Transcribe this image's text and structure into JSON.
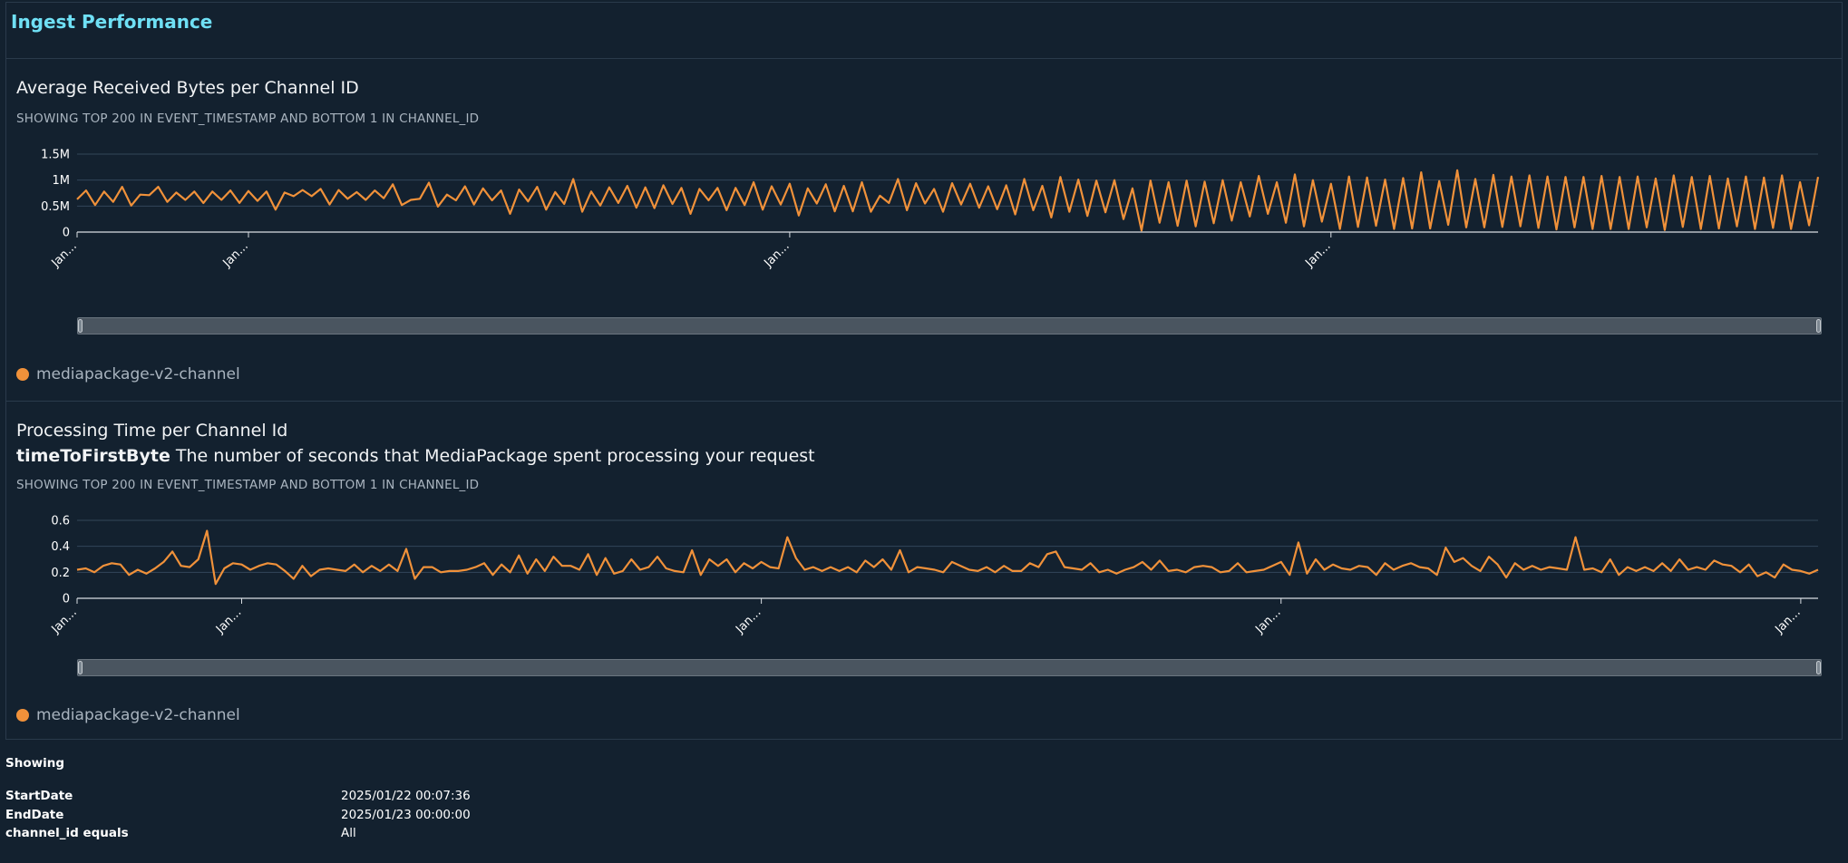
{
  "sheet": {
    "title": "Ingest Performance"
  },
  "visuals": [
    {
      "title": "Average Received Bytes per Channel ID",
      "description_bold": "",
      "description_text": "",
      "subtitle": "SHOWING TOP 200 IN EVENT_TIMESTAMP AND BOTTOM 1 IN CHANNEL_ID",
      "legend": "mediapackage-v2-channel"
    },
    {
      "title": "Processing Time per Channel Id",
      "description_bold": "timeToFirstByte",
      "description_text": "The number of seconds that MediaPackage spent processing your request",
      "subtitle": "SHOWING TOP 200 IN EVENT_TIMESTAMP AND BOTTOM 1 IN CHANNEL_ID",
      "legend": "mediapackage-v2-channel"
    }
  ],
  "footer": {
    "heading": "Showing",
    "rows": [
      {
        "key": "StartDate",
        "value": "2025/01/22 00:07:36"
      },
      {
        "key": "EndDate",
        "value": "2025/01/23 00:00:00"
      },
      {
        "key": "channel_id equals",
        "value": "All"
      }
    ]
  },
  "colors": {
    "series": "#f0913a",
    "background": "#13212f",
    "title_accent": "#6fe0f5"
  },
  "chart_data": [
    {
      "type": "line",
      "title": "Average Received Bytes per Channel ID",
      "ylim": [
        0,
        1500000
      ],
      "y_ticks": [
        0,
        500000,
        1000000,
        1500000
      ],
      "y_tick_labels": [
        "0",
        "0.5M",
        "1M",
        "1.5M"
      ],
      "x_tick_labels": [
        "Jan...",
        "Jan...",
        "Jan...",
        "Jan...",
        "Jan..."
      ],
      "x_tick_index": [
        0,
        19,
        79,
        139,
        199
      ],
      "grid": true,
      "legend_position": "bottom-left",
      "series": [
        {
          "name": "mediapackage-v2-channel",
          "values": [
            630000,
            800000,
            520000,
            780000,
            580000,
            870000,
            510000,
            720000,
            710000,
            870000,
            580000,
            760000,
            620000,
            780000,
            560000,
            780000,
            620000,
            800000,
            560000,
            790000,
            600000,
            780000,
            430000,
            760000,
            690000,
            810000,
            690000,
            830000,
            530000,
            810000,
            640000,
            770000,
            620000,
            800000,
            650000,
            920000,
            520000,
            620000,
            640000,
            950000,
            490000,
            720000,
            610000,
            880000,
            530000,
            840000,
            610000,
            800000,
            350000,
            820000,
            590000,
            870000,
            430000,
            770000,
            540000,
            1020000,
            390000,
            780000,
            510000,
            860000,
            560000,
            890000,
            470000,
            860000,
            460000,
            900000,
            540000,
            850000,
            350000,
            830000,
            610000,
            850000,
            420000,
            850000,
            520000,
            960000,
            430000,
            880000,
            530000,
            930000,
            320000,
            840000,
            550000,
            920000,
            400000,
            890000,
            400000,
            960000,
            390000,
            700000,
            560000,
            1020000,
            420000,
            940000,
            550000,
            830000,
            390000,
            940000,
            530000,
            930000,
            470000,
            880000,
            440000,
            900000,
            340000,
            1020000,
            420000,
            890000,
            280000,
            1060000,
            390000,
            1010000,
            310000,
            990000,
            380000,
            1000000,
            250000,
            840000,
            30000,
            990000,
            180000,
            960000,
            120000,
            990000,
            110000,
            970000,
            170000,
            1000000,
            220000,
            960000,
            300000,
            1080000,
            350000,
            960000,
            180000,
            1110000,
            110000,
            1000000,
            200000,
            930000,
            60000,
            1070000,
            100000,
            1050000,
            120000,
            1010000,
            60000,
            1040000,
            70000,
            1150000,
            70000,
            980000,
            140000,
            1190000,
            90000,
            1020000,
            90000,
            1100000,
            100000,
            1070000,
            110000,
            1090000,
            80000,
            1070000,
            50000,
            1060000,
            90000,
            1060000,
            60000,
            1080000,
            60000,
            1060000,
            60000,
            1070000,
            90000,
            1030000,
            40000,
            1090000,
            100000,
            1060000,
            60000,
            1080000,
            70000,
            1030000,
            110000,
            1070000,
            60000,
            1050000,
            80000,
            1090000,
            60000,
            960000,
            130000,
            1060000
          ]
        }
      ]
    },
    {
      "type": "line",
      "title": "Processing Time per Channel Id",
      "ylim": [
        0,
        0.6
      ],
      "y_ticks": [
        0,
        0.2,
        0.4,
        0.6
      ],
      "y_tick_labels": [
        "0",
        "0.2",
        "0.4",
        "0.6"
      ],
      "x_tick_labels": [
        "Jan...",
        "Jan...",
        "Jan...",
        "Jan...",
        "Jan..."
      ],
      "x_tick_index": [
        0,
        19,
        79,
        139,
        199
      ],
      "grid": true,
      "legend_position": "bottom-left",
      "series": [
        {
          "name": "mediapackage-v2-channel",
          "values": [
            0.22,
            0.23,
            0.2,
            0.25,
            0.27,
            0.26,
            0.18,
            0.22,
            0.19,
            0.23,
            0.28,
            0.36,
            0.25,
            0.24,
            0.3,
            0.52,
            0.11,
            0.23,
            0.27,
            0.26,
            0.22,
            0.25,
            0.27,
            0.26,
            0.21,
            0.15,
            0.25,
            0.17,
            0.22,
            0.23,
            0.22,
            0.21,
            0.26,
            0.2,
            0.25,
            0.21,
            0.26,
            0.21,
            0.38,
            0.15,
            0.24,
            0.24,
            0.2,
            0.21,
            0.21,
            0.22,
            0.24,
            0.27,
            0.18,
            0.26,
            0.2,
            0.33,
            0.19,
            0.3,
            0.21,
            0.32,
            0.25,
            0.25,
            0.22,
            0.34,
            0.18,
            0.31,
            0.19,
            0.21,
            0.3,
            0.22,
            0.24,
            0.32,
            0.23,
            0.21,
            0.2,
            0.37,
            0.18,
            0.3,
            0.25,
            0.3,
            0.2,
            0.27,
            0.23,
            0.28,
            0.24,
            0.23,
            0.47,
            0.31,
            0.22,
            0.24,
            0.21,
            0.24,
            0.21,
            0.24,
            0.2,
            0.29,
            0.24,
            0.3,
            0.22,
            0.37,
            0.2,
            0.24,
            0.23,
            0.22,
            0.2,
            0.28,
            0.25,
            0.22,
            0.21,
            0.24,
            0.2,
            0.25,
            0.21,
            0.21,
            0.27,
            0.24,
            0.34,
            0.36,
            0.24,
            0.23,
            0.22,
            0.27,
            0.2,
            0.22,
            0.19,
            0.22,
            0.24,
            0.28,
            0.22,
            0.29,
            0.21,
            0.22,
            0.2,
            0.24,
            0.25,
            0.24,
            0.2,
            0.21,
            0.27,
            0.2,
            0.21,
            0.22,
            0.25,
            0.28,
            0.18,
            0.43,
            0.19,
            0.3,
            0.22,
            0.26,
            0.23,
            0.22,
            0.25,
            0.24,
            0.18,
            0.27,
            0.22,
            0.25,
            0.27,
            0.24,
            0.23,
            0.18,
            0.39,
            0.28,
            0.31,
            0.25,
            0.21,
            0.32,
            0.26,
            0.16,
            0.27,
            0.22,
            0.25,
            0.22,
            0.24,
            0.23,
            0.22,
            0.47,
            0.22,
            0.23,
            0.2,
            0.3,
            0.18,
            0.24,
            0.21,
            0.24,
            0.21,
            0.27,
            0.21,
            0.3,
            0.22,
            0.24,
            0.22,
            0.29,
            0.26,
            0.25,
            0.2,
            0.26,
            0.17,
            0.2,
            0.16,
            0.26,
            0.22,
            0.21,
            0.19,
            0.22
          ]
        }
      ]
    }
  ]
}
